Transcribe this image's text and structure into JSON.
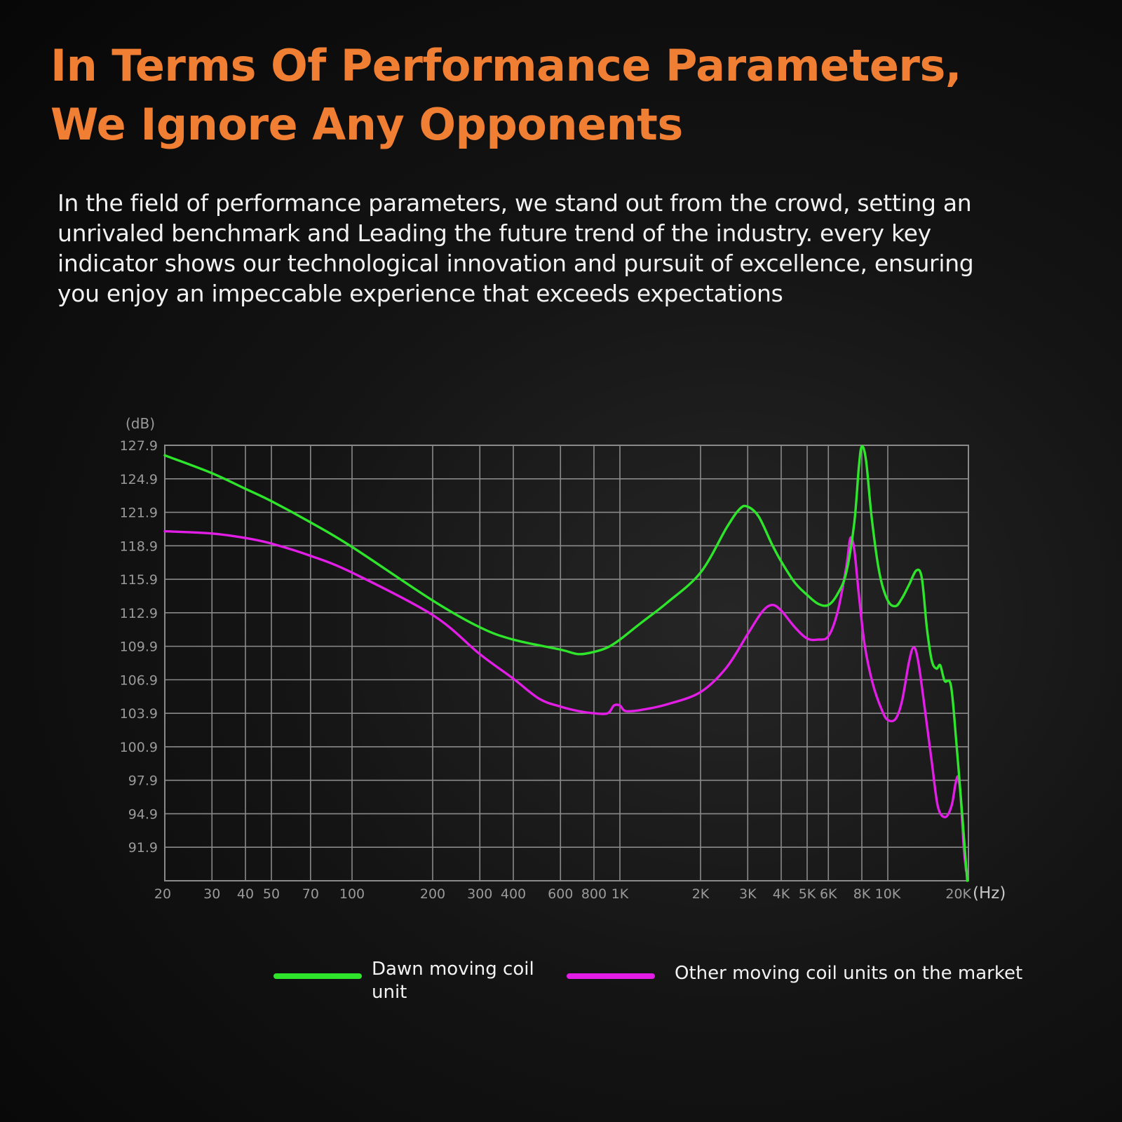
{
  "headline": {
    "line1": "In Terms Of Performance Parameters,",
    "line2": "We Ignore Any Opponents"
  },
  "intro": {
    "line1": "In the field of performance parameters, we stand out from the crowd, setting an",
    "line2": "unrivaled benchmark and Leading the future trend of the industry. every key",
    "line3": "indicator shows our technological innovation and pursuit of excellence, ensuring",
    "line4": "you enjoy an impeccable experience that exceeds expectations"
  },
  "colors": {
    "accent": "#f07f34",
    "series_green": "#2ee52b",
    "series_magenta": "#e21ee6",
    "grid": "#8a8a8a",
    "tick_text": "#9a9a9a"
  },
  "chart_data": {
    "type": "line",
    "xscale": "log",
    "xlim": [
      20,
      20000
    ],
    "ylim": [
      88.9,
      127.9
    ],
    "ylabel": "(dB)",
    "xlabel": "(Hz)",
    "grid": true,
    "legend_position": "bottom",
    "yticks": [
      127.9,
      124.9,
      121.9,
      118.9,
      115.9,
      112.9,
      109.9,
      106.9,
      103.9,
      100.9,
      97.9,
      94.9,
      91.9
    ],
    "ytick_labels": [
      "127.9",
      "124.9",
      "121.9",
      "118.9",
      "115.9",
      "112.9",
      "109.9",
      "106.9",
      "103.9",
      "100.9",
      "97.9",
      "94.9",
      "91.9"
    ],
    "xticks": [
      20,
      30,
      40,
      50,
      70,
      100,
      200,
      300,
      400,
      600,
      800,
      1000,
      2000,
      3000,
      4000,
      5000,
      6000,
      8000,
      10000,
      20000
    ],
    "xtick_labels": [
      "20",
      "30",
      "40",
      "50",
      "70",
      "100",
      "200",
      "300",
      "400",
      "600",
      "800",
      "1K",
      "2K",
      "3K",
      "4K",
      "5K",
      "6K",
      "8K",
      "10K",
      "20K"
    ],
    "series": [
      {
        "name": "Dawn moving coil unit",
        "color": "#2ee52b",
        "points": [
          [
            20,
            127.0
          ],
          [
            30,
            125.4
          ],
          [
            40,
            124.0
          ],
          [
            50,
            122.9
          ],
          [
            70,
            121.0
          ],
          [
            100,
            118.8
          ],
          [
            200,
            114.0
          ],
          [
            300,
            111.6
          ],
          [
            400,
            110.5
          ],
          [
            600,
            109.6
          ],
          [
            700,
            109.2
          ],
          [
            800,
            109.4
          ],
          [
            900,
            109.8
          ],
          [
            1000,
            110.5
          ],
          [
            1200,
            112.0
          ],
          [
            1500,
            113.8
          ],
          [
            2000,
            116.5
          ],
          [
            2500,
            120.5
          ],
          [
            2800,
            122.2
          ],
          [
            3000,
            122.4
          ],
          [
            3300,
            121.5
          ],
          [
            3700,
            119.0
          ],
          [
            4000,
            117.5
          ],
          [
            4500,
            115.6
          ],
          [
            5000,
            114.5
          ],
          [
            5500,
            113.7
          ],
          [
            6000,
            113.6
          ],
          [
            6500,
            114.6
          ],
          [
            7000,
            116.5
          ],
          [
            7500,
            121.0
          ],
          [
            7800,
            126.0
          ],
          [
            8000,
            127.8
          ],
          [
            8300,
            126.5
          ],
          [
            8700,
            121.5
          ],
          [
            9300,
            116.5
          ],
          [
            10000,
            114.0
          ],
          [
            10700,
            113.5
          ],
          [
            11300,
            114.2
          ],
          [
            12000,
            115.4
          ],
          [
            12800,
            116.7
          ],
          [
            13400,
            116.0
          ],
          [
            14000,
            111.5
          ],
          [
            14600,
            108.6
          ],
          [
            15200,
            107.9
          ],
          [
            15700,
            108.2
          ],
          [
            16300,
            106.8
          ],
          [
            17200,
            106.4
          ],
          [
            18000,
            101.5
          ],
          [
            19000,
            94.5
          ],
          [
            19800,
            88.9
          ]
        ]
      },
      {
        "name": "Other moving coil units on the market",
        "color": "#e21ee6",
        "points": [
          [
            20,
            120.2
          ],
          [
            30,
            120.0
          ],
          [
            40,
            119.6
          ],
          [
            50,
            119.1
          ],
          [
            70,
            118.0
          ],
          [
            100,
            116.5
          ],
          [
            200,
            112.7
          ],
          [
            300,
            109.2
          ],
          [
            400,
            107.0
          ],
          [
            500,
            105.2
          ],
          [
            600,
            104.5
          ],
          [
            700,
            104.1
          ],
          [
            800,
            103.9
          ],
          [
            900,
            103.9
          ],
          [
            950,
            104.6
          ],
          [
            1000,
            104.6
          ],
          [
            1050,
            104.1
          ],
          [
            1200,
            104.2
          ],
          [
            1500,
            104.7
          ],
          [
            2000,
            105.8
          ],
          [
            2500,
            108.0
          ],
          [
            3000,
            111.0
          ],
          [
            3400,
            113.0
          ],
          [
            3700,
            113.6
          ],
          [
            4000,
            113.1
          ],
          [
            4500,
            111.6
          ],
          [
            5000,
            110.6
          ],
          [
            5500,
            110.5
          ],
          [
            6000,
            110.8
          ],
          [
            6500,
            113.0
          ],
          [
            7000,
            117.0
          ],
          [
            7250,
            119.6
          ],
          [
            7500,
            118.5
          ],
          [
            7800,
            114.5
          ],
          [
            8200,
            110.0
          ],
          [
            8800,
            106.5
          ],
          [
            9500,
            104.2
          ],
          [
            10000,
            103.3
          ],
          [
            10700,
            103.4
          ],
          [
            11300,
            105.0
          ],
          [
            12000,
            108.5
          ],
          [
            12500,
            109.8
          ],
          [
            13000,
            108.5
          ],
          [
            13800,
            104.0
          ],
          [
            14600,
            99.5
          ],
          [
            15400,
            95.5
          ],
          [
            16400,
            94.6
          ],
          [
            17300,
            95.6
          ],
          [
            17900,
            97.6
          ],
          [
            18300,
            98.2
          ],
          [
            18700,
            96.5
          ],
          [
            19200,
            92.0
          ],
          [
            19600,
            89.8
          ]
        ]
      }
    ]
  }
}
